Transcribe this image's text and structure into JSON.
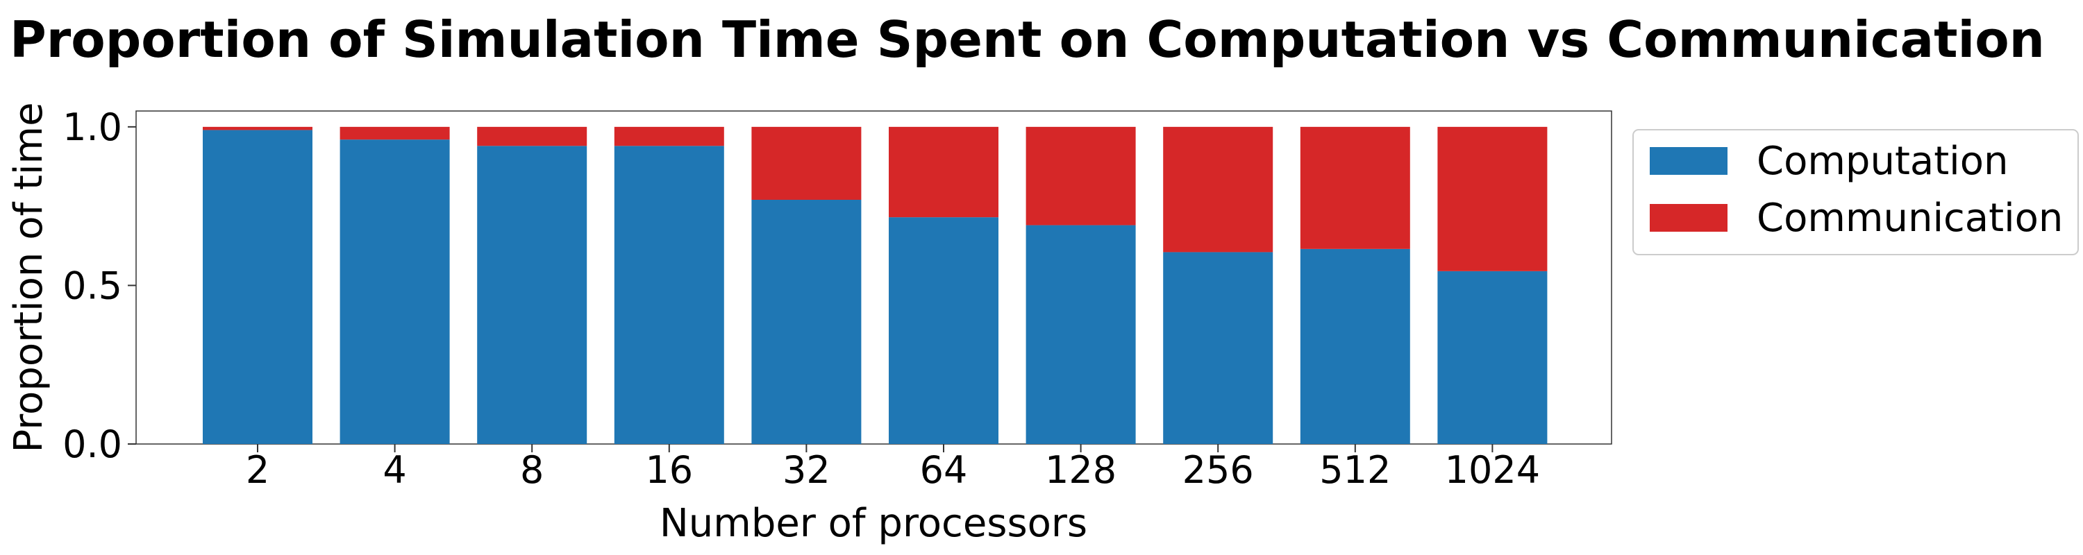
{
  "chart_data": {
    "type": "bar",
    "stacked": true,
    "title": "Proportion of Simulation Time Spent on Computation vs Communication",
    "xlabel": "Number of processors",
    "ylabel": "Proportion of time",
    "categories": [
      "2",
      "4",
      "8",
      "16",
      "32",
      "64",
      "128",
      "256",
      "512",
      "1024"
    ],
    "ylim": [
      0,
      1.05
    ],
    "yticks": [
      0.0,
      0.5,
      1.0
    ],
    "ytick_labels": [
      "0.0",
      "0.5",
      "1.0"
    ],
    "grid": false,
    "legend_position": "outside-top-right",
    "series": [
      {
        "name": "Computation",
        "color": "#1f77b4",
        "values": [
          0.99,
          0.96,
          0.94,
          0.94,
          0.77,
          0.715,
          0.69,
          0.605,
          0.615,
          0.545
        ]
      },
      {
        "name": "Communication",
        "color": "#d62728",
        "values": [
          0.01,
          0.04,
          0.06,
          0.06,
          0.23,
          0.285,
          0.31,
          0.395,
          0.385,
          0.455
        ]
      }
    ]
  }
}
